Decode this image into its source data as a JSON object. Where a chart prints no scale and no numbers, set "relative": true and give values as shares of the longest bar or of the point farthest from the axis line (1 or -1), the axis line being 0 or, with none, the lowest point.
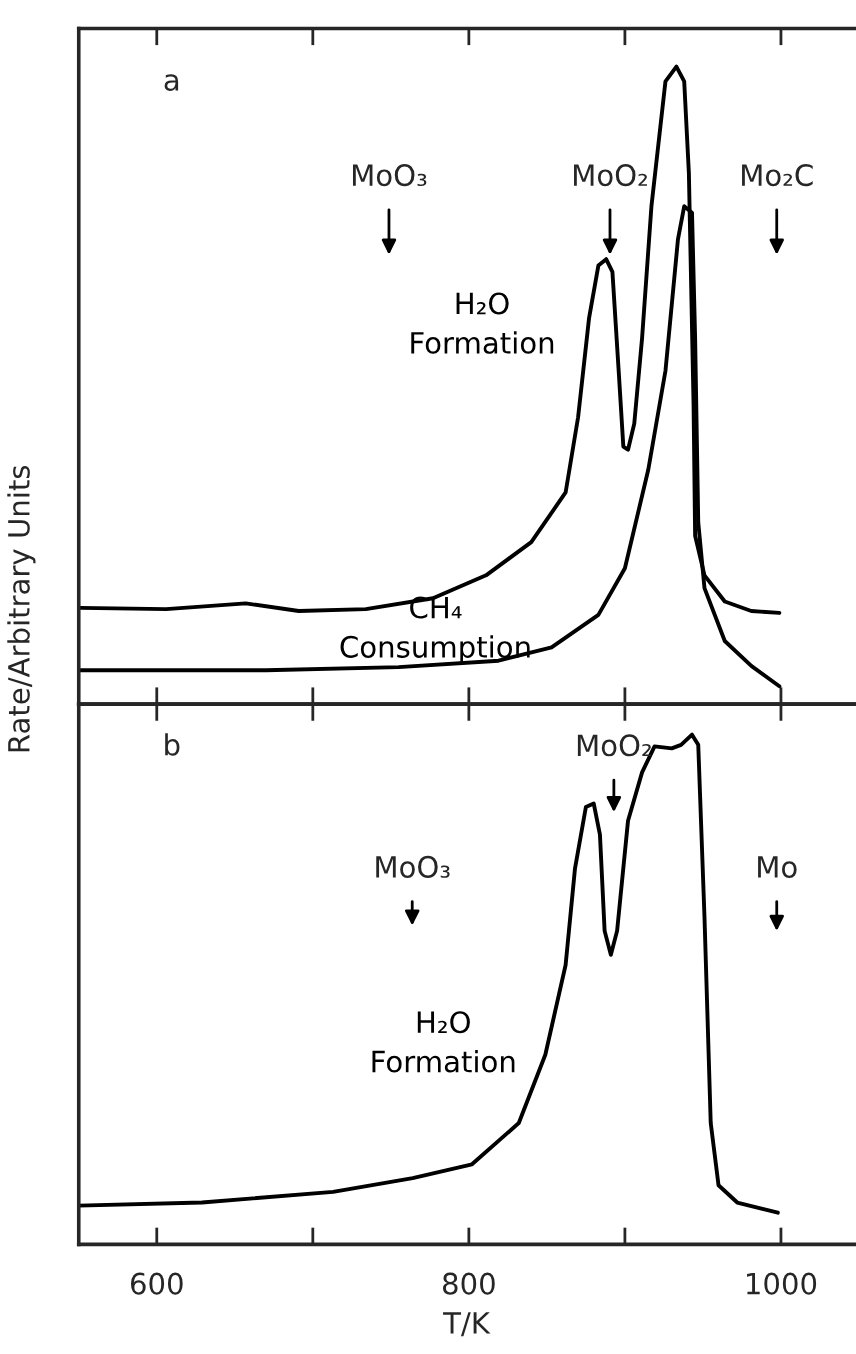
{
  "chart_data": [
    {
      "type": "line",
      "relative": true,
      "ylabel": "Rate/Arbitrary Units",
      "xlim": [
        550,
        1047
      ],
      "xticks": [
        {
          "value": 600,
          "label": null
        },
        {
          "value": 700,
          "label": null
        },
        {
          "value": 800,
          "label": null
        },
        {
          "value": 900,
          "label": null
        },
        {
          "value": 1000,
          "label": null
        }
      ],
      "tick_labels": false,
      "grid": false,
      "legend": false,
      "marker": "none",
      "line_style": "solid",
      "series": [
        {
          "name": "H₂O\nFormation",
          "color": "#000000",
          "x": [
            551,
            606,
            657,
            691,
            734,
            777,
            811,
            840,
            862,
            870,
            877,
            883,
            888,
            892,
            896,
            899,
            902,
            906,
            911,
            917,
            926,
            933,
            938,
            941,
            944,
            945,
            951,
            964,
            981,
            999
          ],
          "values": [
            0.151,
            0.149,
            0.158,
            0.146,
            0.149,
            0.166,
            0.202,
            0.254,
            0.332,
            0.45,
            0.605,
            0.688,
            0.698,
            0.678,
            0.523,
            0.404,
            0.399,
            0.44,
            0.574,
            0.781,
            0.977,
            1.0,
            0.977,
            0.833,
            0.471,
            0.264,
            0.202,
            0.161,
            0.146,
            0.143
          ]
        },
        {
          "name": "CH₄\nConsumption",
          "color": "#000000",
          "x": [
            551,
            670,
            755,
            819,
            853,
            883,
            900,
            915,
            926,
            934,
            938,
            943,
            945,
            947,
            951,
            964,
            981,
            999
          ],
          "values": [
            0.053,
            0.053,
            0.058,
            0.068,
            0.089,
            0.14,
            0.213,
            0.368,
            0.523,
            0.729,
            0.781,
            0.771,
            0.574,
            0.285,
            0.182,
            0.099,
            0.06,
            0.028
          ]
        }
      ],
      "annotations": [
        "a",
        "MoO₃",
        "MoO₂",
        "Mo₂C"
      ]
    },
    {
      "type": "line",
      "relative": true,
      "xlabel": "T/K",
      "xlim": [
        550,
        1047
      ],
      "xticks": [
        600,
        {
          "value": 700,
          "label": null
        },
        800,
        {
          "value": 900,
          "label": null
        },
        1000
      ],
      "tick_labels": "x",
      "grid": false,
      "legend": false,
      "marker": "none",
      "line_style": "solid",
      "series": [
        {
          "name": "H₂O\nFormation",
          "color": "#000000",
          "x": [
            550,
            629,
            713,
            764,
            802,
            832,
            849,
            862,
            868,
            875,
            880,
            884,
            887,
            891,
            895,
            902,
            911,
            919,
            930,
            936,
            943,
            947,
            951,
            955,
            960,
            972,
            998
          ],
          "values": [
            0.076,
            0.082,
            0.103,
            0.13,
            0.157,
            0.238,
            0.372,
            0.548,
            0.737,
            0.858,
            0.865,
            0.804,
            0.615,
            0.568,
            0.615,
            0.831,
            0.926,
            0.977,
            0.973,
            0.98,
            1.0,
            0.98,
            0.642,
            0.238,
            0.116,
            0.082,
            0.062
          ]
        }
      ],
      "annotations": [
        "b",
        "MoO₃",
        "MoO₂",
        "Mo"
      ]
    }
  ]
}
